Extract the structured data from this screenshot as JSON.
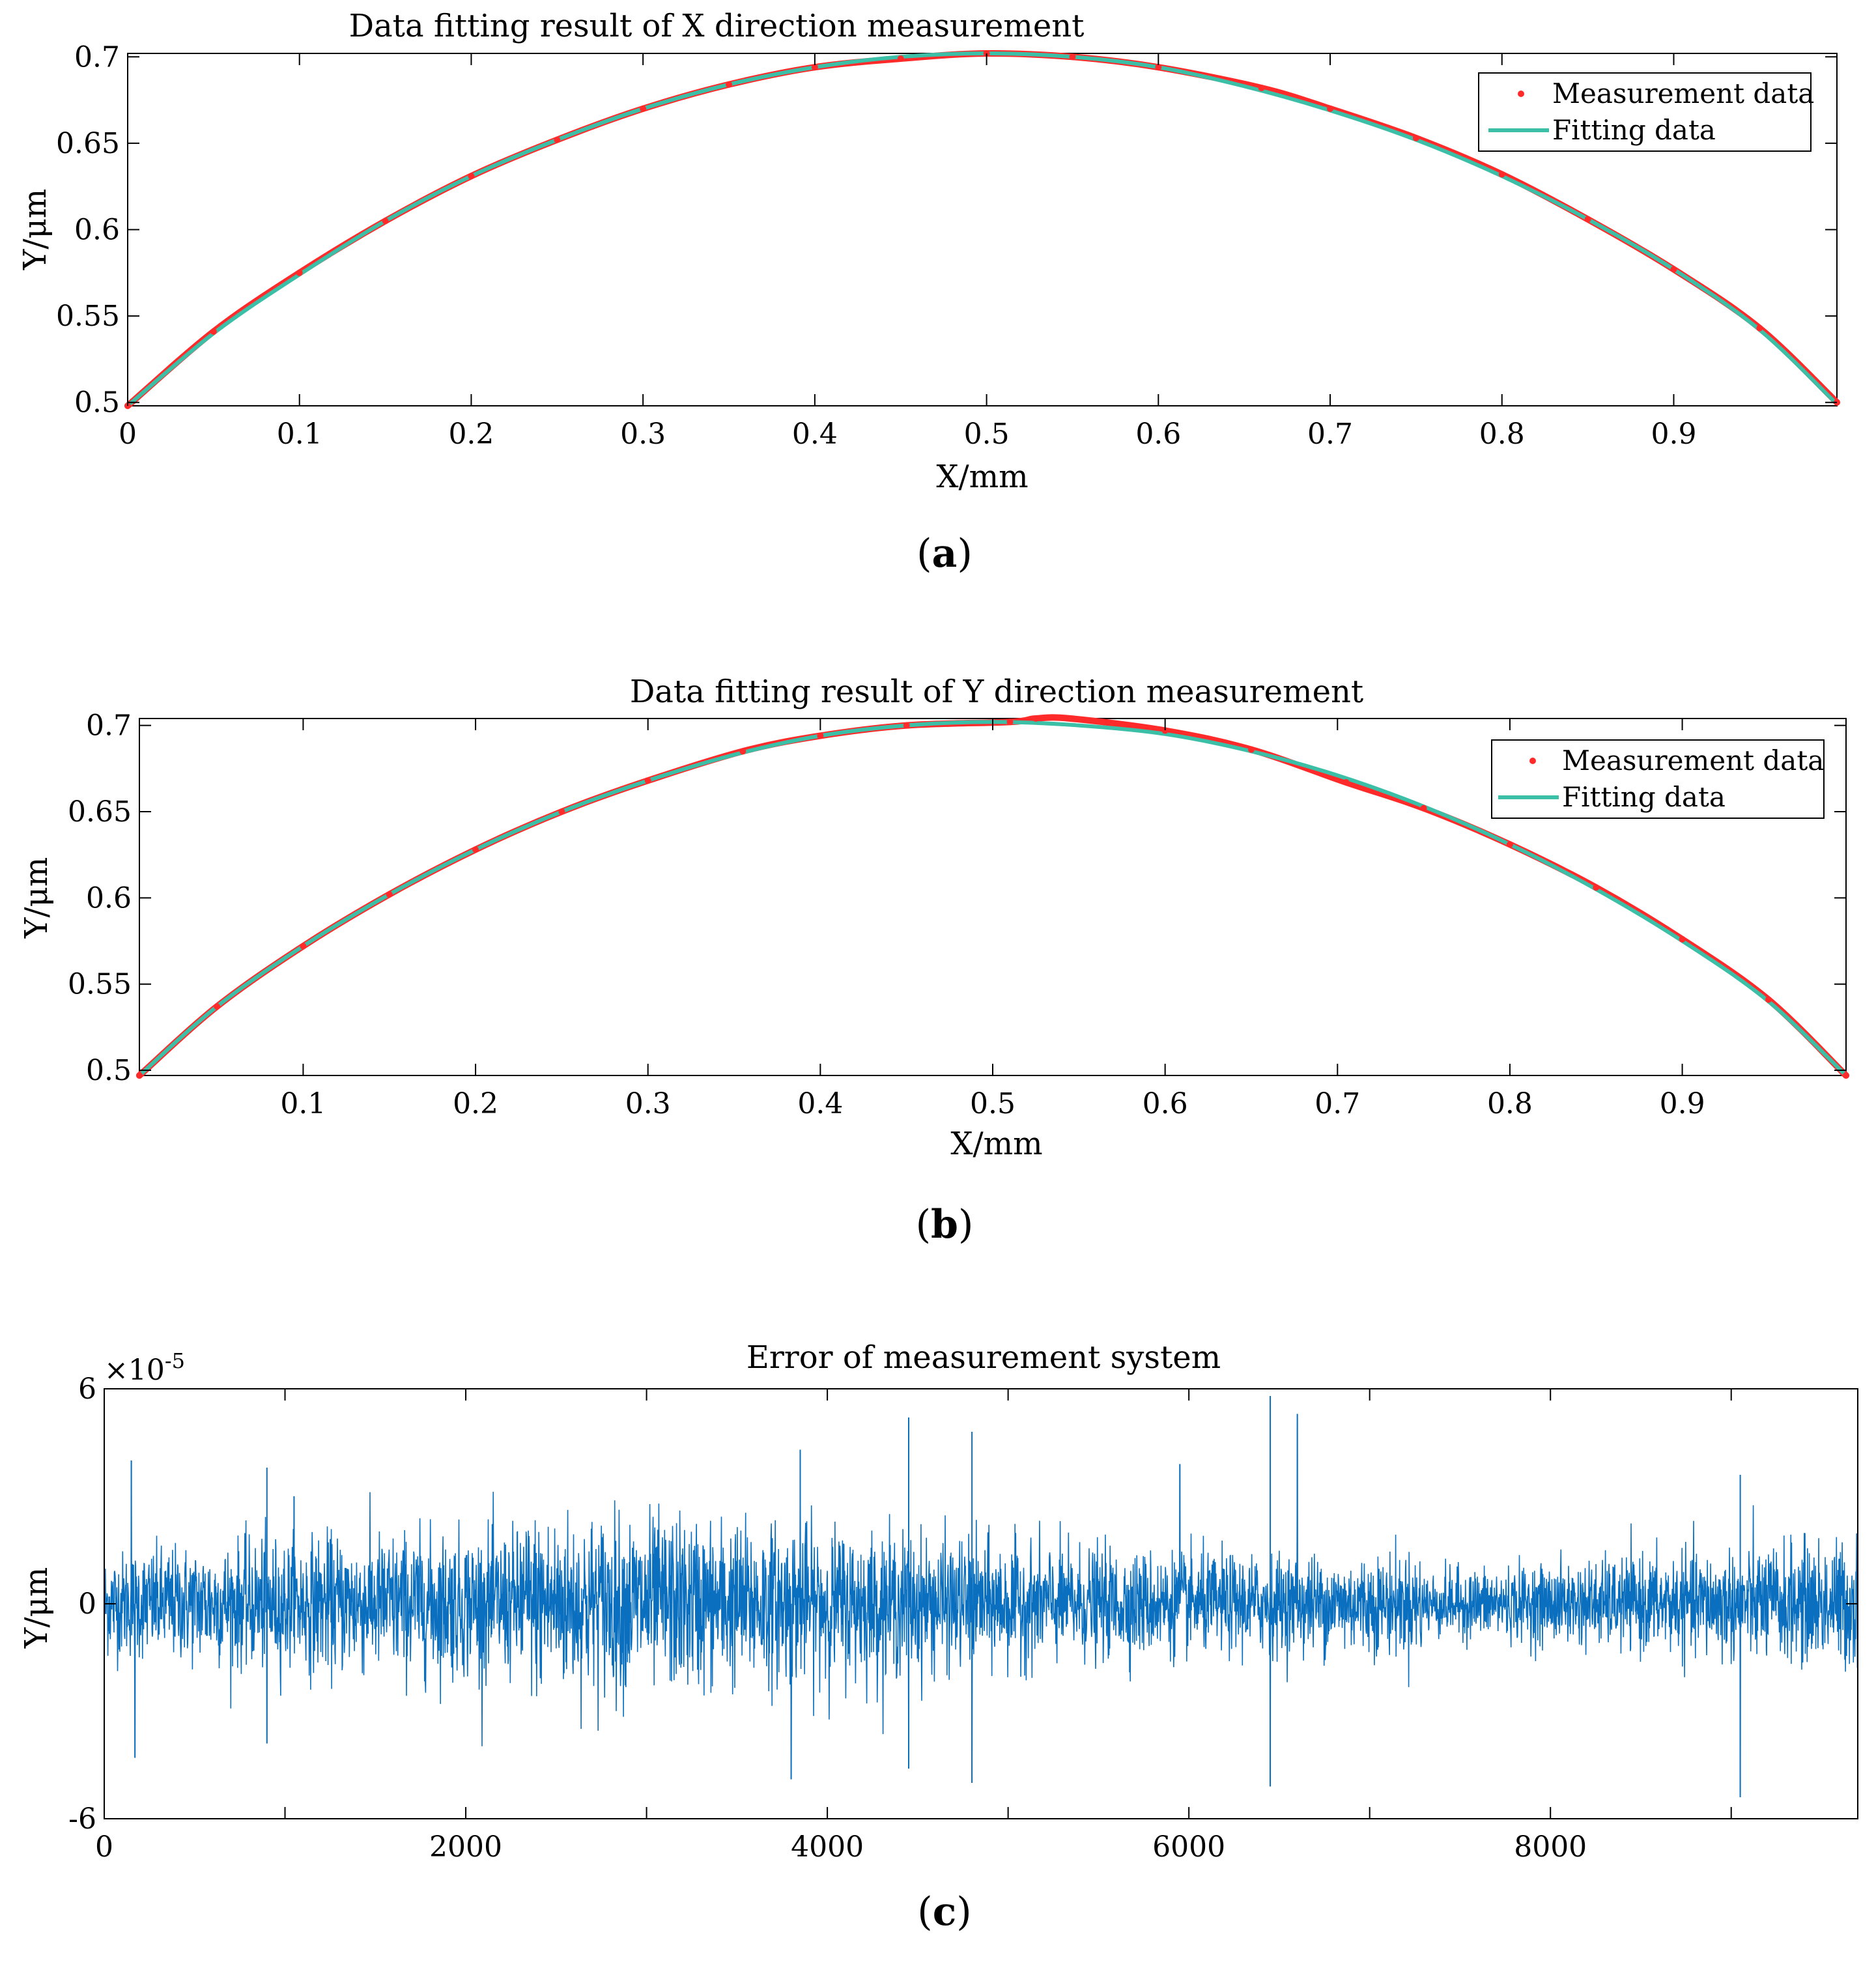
{
  "colors": {
    "measurement": "#ff2a2a",
    "fit": "#3cbfa7",
    "error": "#0a6fbe",
    "axis": "#000000",
    "background": "#ffffff"
  },
  "chart_data": [
    {
      "type": "line",
      "panel_label": "a",
      "title": "Data fitting result of X direction measurement",
      "xlabel": "X/mm",
      "ylabel": "Y/μm",
      "xlim": [
        0,
        0.995
      ],
      "ylim": [
        0.498,
        0.702
      ],
      "xticks": [
        0,
        0.1,
        0.2,
        0.3,
        0.4,
        0.5,
        0.6,
        0.7,
        0.8,
        0.9
      ],
      "xtick_labels": [
        "0",
        "0.1",
        "0.2",
        "0.3",
        "0.4",
        "0.5",
        "0.6",
        "0.7",
        "0.8",
        "0.9"
      ],
      "yticks": [
        0.5,
        0.55,
        0.6,
        0.65,
        0.7
      ],
      "ytick_labels": [
        "0.5",
        "0.55",
        "0.6",
        "0.65",
        "0.7"
      ],
      "legend": {
        "placement": "top-right",
        "entries": [
          "Measurement data",
          "Fitting data"
        ]
      },
      "series": [
        {
          "name": "Measurement data",
          "style": "scatter",
          "x": [
            0,
            0.05,
            0.1,
            0.15,
            0.2,
            0.25,
            0.3,
            0.35,
            0.4,
            0.45,
            0.5,
            0.55,
            0.6,
            0.66,
            0.7,
            0.75,
            0.8,
            0.85,
            0.9,
            0.95,
            0.995
          ],
          "y": [
            0.498,
            0.541,
            0.575,
            0.605,
            0.631,
            0.652,
            0.67,
            0.684,
            0.694,
            0.699,
            0.702,
            0.7,
            0.694,
            0.682,
            0.67,
            0.653,
            0.632,
            0.606,
            0.577,
            0.543,
            0.5
          ]
        },
        {
          "name": "Fitting data",
          "style": "line",
          "x": [
            0,
            0.05,
            0.1,
            0.15,
            0.2,
            0.25,
            0.3,
            0.35,
            0.4,
            0.45,
            0.5,
            0.55,
            0.6,
            0.65,
            0.7,
            0.75,
            0.8,
            0.85,
            0.9,
            0.95,
            0.995
          ],
          "y": [
            0.498,
            0.54,
            0.574,
            0.605,
            0.631,
            0.652,
            0.67,
            0.684,
            0.694,
            0.7,
            0.702,
            0.7,
            0.694,
            0.683,
            0.669,
            0.652,
            0.631,
            0.606,
            0.577,
            0.542,
            0.499
          ]
        }
      ]
    },
    {
      "type": "line",
      "panel_label": "b",
      "title": "Data fitting result of Y direction measurement",
      "xlabel": "X/mm",
      "ylabel": "Y/μm",
      "xlim": [
        0.005,
        0.995
      ],
      "ylim": [
        0.497,
        0.704
      ],
      "xticks": [
        0.1,
        0.2,
        0.3,
        0.4,
        0.5,
        0.6,
        0.7,
        0.8,
        0.9
      ],
      "xtick_labels": [
        "0.1",
        "0.2",
        "0.3",
        "0.4",
        "0.5",
        "0.6",
        "0.7",
        "0.8",
        "0.9"
      ],
      "yticks": [
        0.5,
        0.55,
        0.6,
        0.65,
        0.7
      ],
      "ytick_labels": [
        "0.5",
        "0.55",
        "0.6",
        "0.65",
        "0.7"
      ],
      "legend": {
        "placement": "top-right",
        "entries": [
          "Measurement data",
          "Fitting data"
        ]
      },
      "series": [
        {
          "name": "Measurement data",
          "style": "scatter",
          "x": [
            0.005,
            0.05,
            0.1,
            0.15,
            0.2,
            0.25,
            0.3,
            0.355,
            0.4,
            0.45,
            0.51,
            0.525,
            0.545,
            0.6,
            0.65,
            0.705,
            0.75,
            0.8,
            0.85,
            0.9,
            0.95,
            0.995
          ],
          "y": [
            0.497,
            0.537,
            0.572,
            0.602,
            0.628,
            0.65,
            0.668,
            0.685,
            0.694,
            0.7,
            0.702,
            0.704,
            0.704,
            0.697,
            0.686,
            0.667,
            0.652,
            0.631,
            0.606,
            0.576,
            0.541,
            0.497
          ]
        },
        {
          "name": "Fitting data",
          "style": "line",
          "x": [
            0.005,
            0.05,
            0.1,
            0.15,
            0.2,
            0.25,
            0.3,
            0.35,
            0.4,
            0.45,
            0.5,
            0.55,
            0.6,
            0.65,
            0.7,
            0.75,
            0.8,
            0.85,
            0.9,
            0.95,
            0.995
          ],
          "y": [
            0.497,
            0.537,
            0.572,
            0.602,
            0.628,
            0.65,
            0.668,
            0.683,
            0.694,
            0.7,
            0.702,
            0.7,
            0.695,
            0.685,
            0.671,
            0.653,
            0.631,
            0.605,
            0.575,
            0.54,
            0.497
          ]
        }
      ]
    },
    {
      "type": "line",
      "panel_label": "c",
      "title": "Error of measurement system",
      "xlabel": "",
      "ylabel": "Y/μm",
      "y_exponent": "×10",
      "y_exponent_power": "-5",
      "xlim": [
        0,
        9700
      ],
      "ylim": [
        -6,
        6
      ],
      "xticks": [
        0,
        2000,
        4000,
        6000,
        8000
      ],
      "xtick_labels": [
        "0",
        "2000",
        "4000",
        "6000",
        "8000"
      ],
      "x_minor_ticks": [
        1000,
        3000,
        5000,
        7000,
        9000
      ],
      "yticks": [
        -6,
        0,
        6
      ],
      "ytick_labels": [
        "-6",
        "0",
        "6"
      ],
      "series": [
        {
          "name": "Error",
          "style": "noise",
          "n_points": 9700,
          "typical_amplitude": 1.5,
          "peaks": [
            {
              "x": 150,
              "y": 4.0
            },
            {
              "x": 900,
              "y": 3.8
            },
            {
              "x": 1050,
              "y": 3.0
            },
            {
              "x": 3850,
              "y": 4.3
            },
            {
              "x": 4450,
              "y": 5.2
            },
            {
              "x": 4800,
              "y": 4.8
            },
            {
              "x": 5950,
              "y": 3.9
            },
            {
              "x": 6450,
              "y": 5.8
            },
            {
              "x": 6600,
              "y": 5.3
            },
            {
              "x": 9050,
              "y": 3.6
            },
            {
              "x": 170,
              "y": -4.3
            },
            {
              "x": 900,
              "y": -3.9
            },
            {
              "x": 3800,
              "y": -4.9
            },
            {
              "x": 4450,
              "y": -4.6
            },
            {
              "x": 4800,
              "y": -5.0
            },
            {
              "x": 6450,
              "y": -5.1
            },
            {
              "x": 9050,
              "y": -5.4
            }
          ]
        }
      ]
    }
  ]
}
